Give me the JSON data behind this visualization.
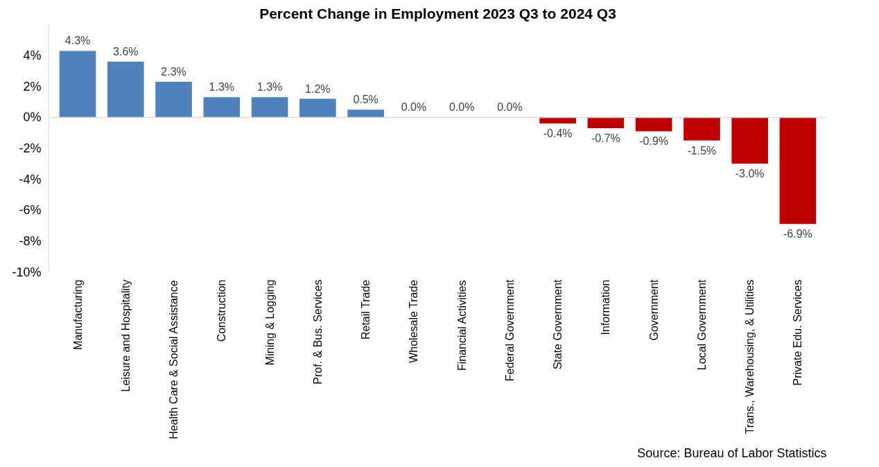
{
  "chart_data": {
    "type": "bar",
    "title": "Percent Change in Employment 2023 Q3 to 2024 Q3",
    "categories": [
      "Manufacturing",
      "Leisure and Hospitality",
      "Health Care & Social Assistance",
      "Construction",
      "Mining & Logging",
      "Prof. & Bus. Services",
      "Retail Trade",
      "Wholesale Trade",
      "Financial Activities",
      "Federal Government",
      "State Government",
      "Information",
      "Government",
      "Local Government",
      "Trans., Warehousing, & Utilities",
      "Private Edu. Services"
    ],
    "values": [
      4.3,
      3.6,
      2.3,
      1.3,
      1.3,
      1.2,
      0.5,
      0.0,
      0.0,
      0.0,
      -0.4,
      -0.7,
      -0.9,
      -1.5,
      -3.0,
      -6.9
    ],
    "colors": [
      "#4f81bd",
      "#4f81bd",
      "#4f81bd",
      "#4f81bd",
      "#4f81bd",
      "#4f81bd",
      "#4f81bd",
      "#4f81bd",
      "#4f81bd",
      "#4f81bd",
      "#c00000",
      "#c00000",
      "#c00000",
      "#c00000",
      "#c00000",
      "#c00000"
    ],
    "value_labels": [
      "4.3%",
      "3.6%",
      "2.3%",
      "1.3%",
      "1.3%",
      "1.2%",
      "0.5%",
      "0.0%",
      "0.0%",
      "0.0%",
      "-0.4%",
      "-0.7%",
      "-0.9%",
      "-1.5%",
      "-3.0%",
      "-6.9%"
    ],
    "ylim": [
      -10,
      6
    ],
    "ref_lines": [
      {
        "axis": "y",
        "value": 0,
        "color": "#d9d9d9"
      }
    ],
    "yticks": [
      {
        "value": -10,
        "label": "-10%"
      },
      {
        "value": -8,
        "label": "-8%"
      },
      {
        "value": -6,
        "label": "-6%"
      },
      {
        "value": -4,
        "label": "-4%"
      },
      {
        "value": -2,
        "label": "-2%"
      },
      {
        "value": 0,
        "label": "0%"
      },
      {
        "value": 2,
        "label": "2%"
      },
      {
        "value": 4,
        "label": "4%"
      }
    ],
    "grid": false,
    "annotations": [
      "Source: Bureau of Labor Statistics"
    ]
  }
}
